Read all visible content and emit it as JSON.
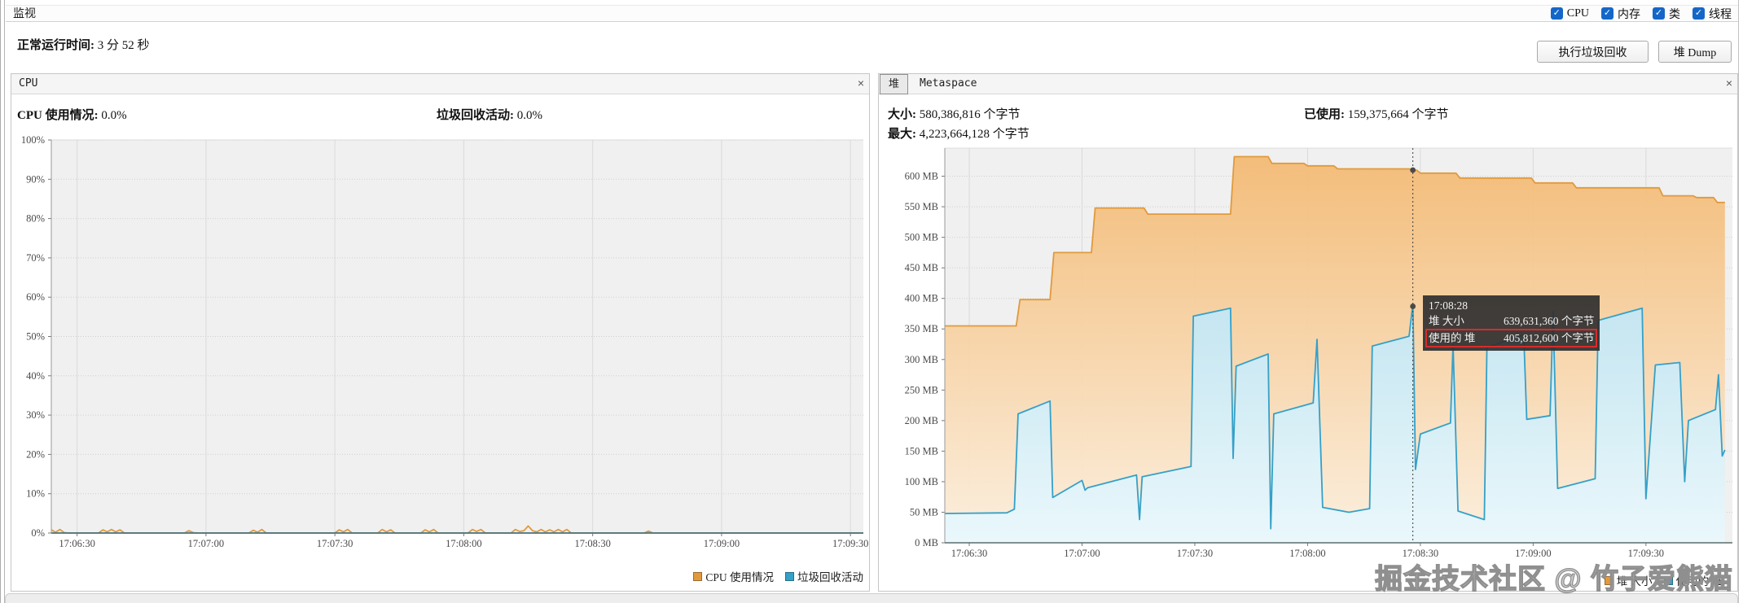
{
  "window": {
    "tab_title": "监视"
  },
  "topbar": {
    "checkboxes": [
      {
        "label": "CPU",
        "checked": true
      },
      {
        "label": "内存",
        "checked": true
      },
      {
        "label": "类",
        "checked": true
      },
      {
        "label": "线程",
        "checked": true
      }
    ],
    "check_glyph": "✓"
  },
  "toolbar": {
    "uptime_label": "正常运行时间:",
    "uptime_value": "3 分 52 秒",
    "gc_button": "执行垃圾回收",
    "heap_dump_button": "堆 Dump"
  },
  "cpu_panel": {
    "title": "CPU",
    "close": "×",
    "stats": [
      {
        "label": "CPU 使用情况:",
        "value": "0.0%"
      },
      {
        "label": "垃圾回收活动:",
        "value": "0.0%"
      }
    ],
    "legend": [
      {
        "label": "CPU 使用情况",
        "color": "#e09a3e"
      },
      {
        "label": "垃圾回收活动",
        "color": "#35a0c8"
      }
    ]
  },
  "heap_panel": {
    "tabs": [
      {
        "label": "堆",
        "selected": true
      },
      {
        "label": "Metaspace",
        "selected": false
      }
    ],
    "close": "×",
    "stats": [
      {
        "label": "大小:",
        "value": "580,386,816 个字节"
      },
      {
        "label": "已使用:",
        "value": "159,375,664 个字节"
      },
      {
        "label": "最大:",
        "value": "4,223,664,128 个字节"
      }
    ],
    "legend": [
      {
        "label": "堆 大小",
        "color": "#e09a3e"
      },
      {
        "label": "使用的 堆",
        "color": "#35a0c8"
      }
    ],
    "tooltip": {
      "time": "17:08:28",
      "rows": [
        {
          "label": "堆 大小",
          "value": "639,631,360 个字节",
          "highlight": false
        },
        {
          "label": "使用的 堆",
          "value": "405,812,600 个字节",
          "highlight": true
        }
      ]
    }
  },
  "watermark": "掘金技术社区 @ 竹子爱熊猫",
  "chart_data": [
    {
      "id": "cpu-chart",
      "type": "area",
      "title": "CPU",
      "xlabel": "",
      "ylabel": "",
      "grid": true,
      "legend_position": "bottom-right",
      "x_domain": [
        24,
        213
      ],
      "y_domain": [
        0,
        100
      ],
      "x_ticks": [
        {
          "t": 30,
          "label": "17:06:30"
        },
        {
          "t": 60,
          "label": "17:07:00"
        },
        {
          "t": 90,
          "label": "17:07:30"
        },
        {
          "t": 120,
          "label": "17:08:00"
        },
        {
          "t": 150,
          "label": "17:08:30"
        },
        {
          "t": 180,
          "label": "17:09:00"
        },
        {
          "t": 210,
          "label": "17:09:30"
        }
      ],
      "y_ticks": [
        {
          "v": 0,
          "label": "0%"
        },
        {
          "v": 10,
          "label": "10%"
        },
        {
          "v": 20,
          "label": "20%"
        },
        {
          "v": 30,
          "label": "30%"
        },
        {
          "v": 40,
          "label": "40%"
        },
        {
          "v": 50,
          "label": "50%"
        },
        {
          "v": 60,
          "label": "60%"
        },
        {
          "v": 70,
          "label": "70%"
        },
        {
          "v": 80,
          "label": "80%"
        },
        {
          "v": 90,
          "label": "90%"
        },
        {
          "v": 100,
          "label": "100%"
        }
      ],
      "series": [
        {
          "name": "CPU 使用情况",
          "color": "#e09a3e",
          "fill": null,
          "points": [
            [
              24,
              0.8
            ],
            [
              25,
              0.2
            ],
            [
              26,
              0.9
            ],
            [
              27,
              0.1
            ],
            [
              28,
              0
            ],
            [
              35,
              0
            ],
            [
              36,
              0.8
            ],
            [
              37,
              0.3
            ],
            [
              38,
              0.9
            ],
            [
              39,
              0.3
            ],
            [
              40,
              0.8
            ],
            [
              41,
              0
            ],
            [
              55,
              0
            ],
            [
              56,
              0.6
            ],
            [
              57,
              0.1
            ],
            [
              58,
              0
            ],
            [
              70,
              0
            ],
            [
              71,
              0.7
            ],
            [
              72,
              0.2
            ],
            [
              73,
              0.9
            ],
            [
              74,
              0
            ],
            [
              90,
              0
            ],
            [
              91,
              0.8
            ],
            [
              92,
              0.3
            ],
            [
              93,
              0.9
            ],
            [
              94,
              0
            ],
            [
              100,
              0
            ],
            [
              101,
              0.9
            ],
            [
              102,
              0.3
            ],
            [
              103,
              0.8
            ],
            [
              104,
              0
            ],
            [
              110,
              0
            ],
            [
              111,
              0.8
            ],
            [
              112,
              0.3
            ],
            [
              113,
              0.9
            ],
            [
              114,
              0
            ],
            [
              121,
              0
            ],
            [
              122,
              0.9
            ],
            [
              123,
              0.4
            ],
            [
              124,
              0.9
            ],
            [
              125,
              0
            ],
            [
              131,
              0
            ],
            [
              132,
              0.9
            ],
            [
              133,
              0.4
            ],
            [
              134,
              0.6
            ],
            [
              135,
              1.8
            ],
            [
              136,
              0.6
            ],
            [
              137,
              0.3
            ],
            [
              138,
              0.9
            ],
            [
              139,
              0.3
            ],
            [
              140,
              0.8
            ],
            [
              141,
              0.3
            ],
            [
              142,
              0.9
            ],
            [
              143,
              0.3
            ],
            [
              144,
              0.9
            ],
            [
              145,
              0
            ],
            [
              162,
              0
            ],
            [
              163,
              0.5
            ],
            [
              164,
              0
            ],
            [
              213,
              0
            ]
          ]
        },
        {
          "name": "垃圾回收活动",
          "color": "#35a0c8",
          "fill": null,
          "points": [
            [
              24,
              0
            ],
            [
              213,
              0
            ]
          ]
        }
      ]
    },
    {
      "id": "heap-chart",
      "type": "area",
      "title": "堆",
      "xlabel": "",
      "ylabel": "MB",
      "grid": true,
      "legend_position": "bottom-right",
      "x_domain": [
        23.5,
        233
      ],
      "y_domain": [
        0,
        646
      ],
      "x_ticks": [
        {
          "t": 30,
          "label": "17:06:30"
        },
        {
          "t": 60,
          "label": "17:07:00"
        },
        {
          "t": 90,
          "label": "17:07:30"
        },
        {
          "t": 120,
          "label": "17:08:00"
        },
        {
          "t": 150,
          "label": "17:08:30"
        },
        {
          "t": 180,
          "label": "17:09:00"
        },
        {
          "t": 210,
          "label": "17:09:30"
        }
      ],
      "y_ticks": [
        {
          "v": 0,
          "label": "0 MB"
        },
        {
          "v": 50,
          "label": "50 MB"
        },
        {
          "v": 100,
          "label": "100 MB"
        },
        {
          "v": 150,
          "label": "150 MB"
        },
        {
          "v": 200,
          "label": "200 MB"
        },
        {
          "v": 250,
          "label": "250 MB"
        },
        {
          "v": 300,
          "label": "300 MB"
        },
        {
          "v": 350,
          "label": "350 MB"
        },
        {
          "v": 400,
          "label": "400 MB"
        },
        {
          "v": 450,
          "label": "450 MB"
        },
        {
          "v": 500,
          "label": "500 MB"
        },
        {
          "v": 550,
          "label": "550 MB"
        },
        {
          "v": 600,
          "label": "600 MB"
        }
      ],
      "series": [
        {
          "name": "堆 大小",
          "color": "#e09a3e",
          "fill": [
            "rgba(243,185,114,0.95)",
            "rgba(252,239,222,0.95)"
          ],
          "points": [
            [
              23.5,
              355
            ],
            [
              42.5,
              355
            ],
            [
              43.5,
              398
            ],
            [
              51.5,
              398
            ],
            [
              52.5,
              475
            ],
            [
              62.5,
              475
            ],
            [
              63.5,
              548
            ],
            [
              76.5,
              548
            ],
            [
              77.5,
              538
            ],
            [
              99.5,
              538
            ],
            [
              100.5,
              632
            ],
            [
              109.5,
              632
            ],
            [
              110.5,
              621
            ],
            [
              119,
              621
            ],
            [
              120,
              617
            ],
            [
              127,
              617
            ],
            [
              128,
              612
            ],
            [
              147,
              612
            ],
            [
              148,
              610
            ],
            [
              149,
              610
            ],
            [
              150,
              605
            ],
            [
              159.5,
              605
            ],
            [
              160.5,
              597
            ],
            [
              179.5,
              597
            ],
            [
              180.5,
              589
            ],
            [
              190.5,
              589
            ],
            [
              191.5,
              581
            ],
            [
              213.5,
              581
            ],
            [
              214.5,
              568
            ],
            [
              222.5,
              568
            ],
            [
              223.5,
              565
            ],
            [
              228,
              565
            ],
            [
              229,
              557
            ],
            [
              231,
              557
            ]
          ]
        },
        {
          "name": "使用的 堆",
          "color": "#35a0c8",
          "fill": [
            "rgba(168,219,240,0.95)",
            "rgba(233,248,253,0.95)"
          ],
          "points": [
            [
              23.5,
              48
            ],
            [
              40,
              49
            ],
            [
              42,
              55
            ],
            [
              43,
              211
            ],
            [
              51.5,
              232
            ],
            [
              52.2,
              74
            ],
            [
              60,
              102
            ],
            [
              60.8,
              86
            ],
            [
              61.5,
              90
            ],
            [
              74.5,
              111
            ],
            [
              75.3,
              38
            ],
            [
              76,
              108
            ],
            [
              89,
              125
            ],
            [
              89.6,
              371
            ],
            [
              99.5,
              384
            ],
            [
              100.2,
              138
            ],
            [
              101,
              289
            ],
            [
              109.5,
              309
            ],
            [
              110.2,
              23
            ],
            [
              111,
              211
            ],
            [
              121.5,
              229
            ],
            [
              122.5,
              333
            ],
            [
              124,
              58
            ],
            [
              131,
              50
            ],
            [
              136.5,
              56
            ],
            [
              137.2,
              322
            ],
            [
              147,
              338
            ],
            [
              148,
              391
            ],
            [
              148.7,
              120
            ],
            [
              150,
              178
            ],
            [
              158,
              196
            ],
            [
              158.7,
              325
            ],
            [
              160,
              52
            ],
            [
              167,
              38
            ],
            [
              167.7,
              320
            ],
            [
              177.5,
              340
            ],
            [
              178.3,
              202
            ],
            [
              184.5,
              208
            ],
            [
              185.3,
              378
            ],
            [
              186.5,
              89
            ],
            [
              196.5,
              105
            ],
            [
              197.3,
              364
            ],
            [
              209,
              384
            ],
            [
              210,
              72
            ],
            [
              212.5,
              291
            ],
            [
              219,
              295
            ],
            [
              220.3,
              100
            ],
            [
              221.3,
              200
            ],
            [
              228.5,
              218
            ],
            [
              229.3,
              275
            ],
            [
              230.3,
              142
            ],
            [
              231,
              152
            ]
          ]
        }
      ],
      "crosshair": {
        "t": 148,
        "dots": [
          610,
          387
        ]
      }
    }
  ]
}
